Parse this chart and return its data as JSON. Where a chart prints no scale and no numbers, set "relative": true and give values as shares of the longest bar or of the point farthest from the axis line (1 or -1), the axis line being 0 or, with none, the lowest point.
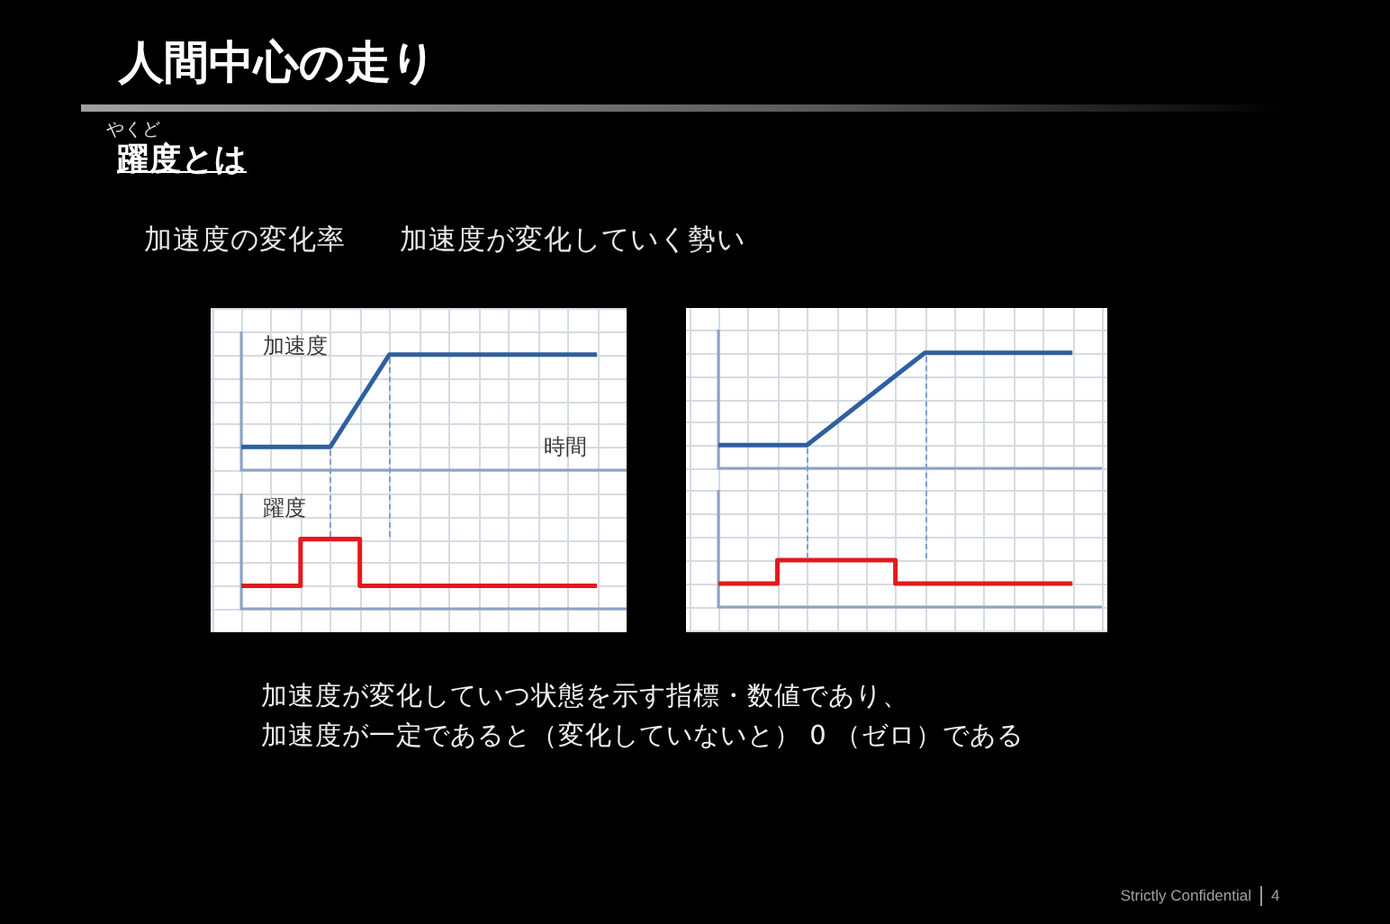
{
  "chart_data": [
    {
      "type": "other",
      "title": "人間中心の走り",
      "subtitle": "躍度とは",
      "annotations": [
        "やくど",
        "加速度の変化率",
        "加速度が変化していく勢い",
        "加速度が変化していつ状態を示す指標・数値であり、",
        "加速度が一定であると（変化していないと） 0 （ゼロ）である",
        "Strictly Confidential",
        "4"
      ]
    },
    {
      "type": "line",
      "relative": true,
      "ylabel": "加速度",
      "xlabel": "時間",
      "categories": [
        null,
        null,
        null,
        null,
        null,
        null,
        null,
        null,
        null,
        null,
        null,
        null,
        null
      ],
      "series": [
        {
          "color": "#2f5f9f",
          "values": [
            0.2,
            0.2,
            0.2,
            0.2,
            0.6,
            1,
            1,
            1,
            1,
            1,
            1,
            1,
            1
          ]
        }
      ],
      "grid": true,
      "legend": false,
      "marker": "none"
    },
    {
      "type": "step",
      "relative": true,
      "ylabel": "躍度",
      "categories": [
        null,
        null,
        null,
        null,
        null,
        null,
        null,
        null,
        null,
        null,
        null,
        null,
        null
      ],
      "series": [
        {
          "color": "#e3191e",
          "values": [
            0.33,
            0.33,
            0.33,
            1,
            1,
            0.33,
            0.33,
            0.33,
            0.33,
            0.33,
            0.33,
            0.33,
            0.33
          ]
        }
      ],
      "grid": true,
      "legend": false,
      "marker": "none"
    },
    {
      "type": "line",
      "relative": true,
      "categories": [
        null,
        null,
        null,
        null,
        null,
        null,
        null,
        null,
        null,
        null,
        null,
        null,
        null
      ],
      "series": [
        {
          "color": "#2f5f9f",
          "values": [
            0.2,
            0.2,
            0.2,
            0.2,
            0.4,
            0.6,
            0.8,
            1,
            1,
            1,
            1,
            1,
            1
          ]
        }
      ],
      "grid": true,
      "legend": false,
      "marker": "none"
    },
    {
      "type": "step",
      "relative": true,
      "categories": [
        null,
        null,
        null,
        null,
        null,
        null,
        null,
        null,
        null,
        null,
        null,
        null,
        null
      ],
      "series": [
        {
          "color": "#e3191e",
          "values": [
            0.5,
            0.5,
            0.5,
            1,
            1,
            1,
            1,
            0.5,
            0.5,
            0.5,
            0.5,
            0.5,
            0.5
          ]
        }
      ],
      "grid": true,
      "legend": false,
      "marker": "none"
    }
  ]
}
